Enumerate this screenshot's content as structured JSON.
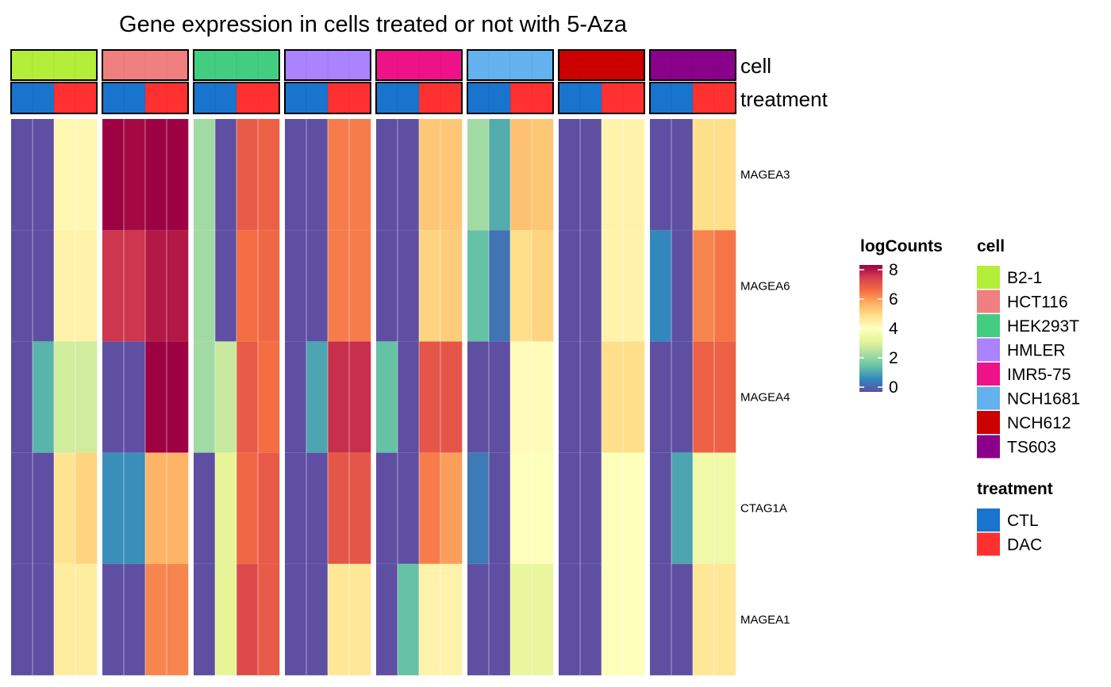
{
  "chart_data": {
    "type": "heatmap",
    "title": "Gene expression in cells treated or not with 5-Aza",
    "annotation_labels": {
      "cell": "cell",
      "treatment": "treatment"
    },
    "genes": [
      "MAGEA3",
      "MAGEA6",
      "MAGEA4",
      "CTAG1A",
      "MAGEA1"
    ],
    "cell_groups": [
      {
        "cell": "B2-1",
        "treatments": [
          "CTL",
          "CTL",
          "DAC",
          "DAC"
        ]
      },
      {
        "cell": "HCT116",
        "treatments": [
          "CTL",
          "CTL",
          "DAC",
          "DAC"
        ]
      },
      {
        "cell": "HEK293T",
        "treatments": [
          "CTL",
          "CTL",
          "DAC",
          "DAC"
        ]
      },
      {
        "cell": "HMLER",
        "treatments": [
          "CTL",
          "CTL",
          "DAC",
          "DAC"
        ]
      },
      {
        "cell": "IMR5-75",
        "treatments": [
          "CTL",
          "CTL",
          "DAC",
          "DAC"
        ]
      },
      {
        "cell": "NCH1681",
        "treatments": [
          "CTL",
          "CTL",
          "DAC",
          "DAC"
        ]
      },
      {
        "cell": "NCH612",
        "treatments": [
          "CTL",
          "CTL",
          "DAC",
          "DAC"
        ]
      },
      {
        "cell": "TS603",
        "treatments": [
          "CTL",
          "CTL",
          "DAC",
          "DAC"
        ]
      }
    ],
    "values": [
      [
        0,
        0,
        4.2,
        4.2,
        8.0,
        7.9,
        8.2,
        8.2,
        2.3,
        0,
        6.7,
        6.6,
        0,
        0,
        6.2,
        6.2,
        0,
        0,
        5.2,
        5.2,
        2.3,
        1.3,
        5.3,
        5.2,
        0,
        0,
        4.3,
        4.3,
        0,
        0,
        4.8,
        4.8
      ],
      [
        0,
        0,
        4.3,
        4.3,
        7.3,
        7.3,
        7.7,
        7.7,
        2.3,
        0,
        6.4,
        6.5,
        0,
        0,
        6.2,
        6.2,
        0,
        0,
        5.0,
        5.1,
        1.6,
        0.5,
        4.8,
        5.0,
        0,
        0,
        4.3,
        4.3,
        0.8,
        0,
        6.1,
        6.3
      ],
      [
        0,
        1.4,
        2.9,
        2.9,
        0,
        0,
        8.3,
        8.3,
        2.3,
        2.8,
        6.7,
        6.4,
        0,
        1.2,
        7.4,
        7.4,
        1.6,
        0,
        6.8,
        6.8,
        0,
        0,
        4.1,
        4.1,
        0,
        0,
        4.8,
        4.8,
        0,
        0,
        6.6,
        6.6
      ],
      [
        0,
        0,
        4.7,
        5.0,
        0.9,
        0.9,
        5.5,
        5.5,
        0,
        3.2,
        6.5,
        6.7,
        0,
        0,
        6.8,
        6.8,
        0,
        0,
        6.2,
        5.8,
        0.6,
        0,
        3.9,
        3.9,
        0,
        0,
        3.9,
        3.9,
        0,
        1.2,
        3.5,
        3.5
      ],
      [
        0,
        0,
        4.5,
        4.5,
        0,
        0,
        6.1,
        6.1,
        0,
        3.2,
        7.0,
        6.7,
        0,
        0,
        4.6,
        4.6,
        0,
        1.6,
        4.3,
        4.3,
        0,
        0,
        3.3,
        3.3,
        0,
        0,
        3.9,
        3.9,
        0,
        0,
        4.6,
        4.6
      ]
    ],
    "color_scale": {
      "name": "logCounts",
      "range": [
        0,
        8
      ],
      "ticks": [
        0,
        2,
        4,
        6,
        8
      ],
      "palette": "Spectral (reversed)"
    },
    "cell_colors": {
      "B2-1": "#B3EE3A",
      "HCT116": "#F08080",
      "HEK293T": "#43CD80",
      "HMLER": "#AB82FF",
      "IMR5-75": "#EE1289",
      "NCH1681": "#63B1EE",
      "NCH612": "#CD0000",
      "TS603": "#8B008B"
    },
    "treatment_colors": {
      "CTL": "#1874CD",
      "DAC": "#FF3030"
    },
    "legend": {
      "colorbar_title": "logCounts",
      "cell_title": "cell",
      "cell_items": [
        "B2-1",
        "HCT116",
        "HEK293T",
        "HMLER",
        "IMR5-75",
        "NCH1681",
        "NCH612",
        "TS603"
      ],
      "treatment_title": "treatment",
      "treatment_items": [
        "CTL",
        "DAC"
      ],
      "placement": "right"
    }
  }
}
